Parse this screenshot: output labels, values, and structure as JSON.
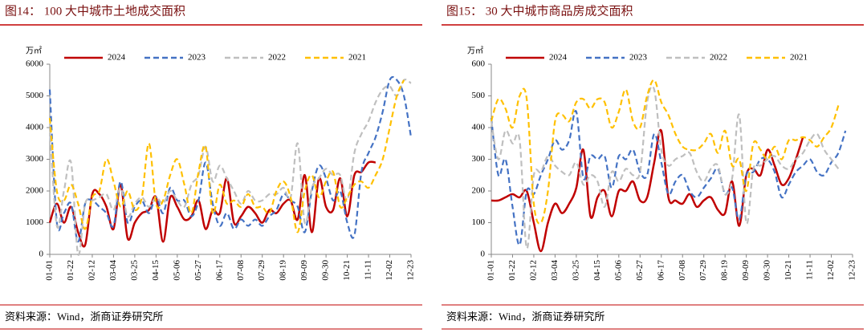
{
  "chart_data": [
    {
      "type": "line",
      "title": "图14：  100 大中城市土地成交面积",
      "y_unit": "万㎡",
      "source": "资料来源：Wind，浙商证券研究所",
      "categories": [
        "01-01",
        null,
        null,
        "01-22",
        null,
        null,
        "02-12",
        null,
        null,
        "03-04",
        null,
        null,
        "03-25",
        null,
        null,
        "04-15",
        null,
        null,
        "05-06",
        null,
        null,
        "05-27",
        null,
        null,
        "06-17",
        null,
        null,
        "07-08",
        null,
        null,
        "07-29",
        null,
        null,
        "08-19",
        null,
        null,
        "09-09",
        null,
        null,
        "09-30",
        null,
        null,
        "10-21",
        null,
        null,
        "11-11",
        null,
        null,
        "12-02",
        null,
        null,
        "12-23"
      ],
      "ylim": [
        0,
        6000
      ],
      "yticks": [
        0,
        1000,
        2000,
        3000,
        4000,
        5000,
        6000
      ],
      "grid": false,
      "smooth": true,
      "series": [
        {
          "name": "2024",
          "color": "#c00000",
          "line_style": "solid",
          "values": [
            1000,
            1600,
            1000,
            1500,
            700,
            300,
            1900,
            1900,
            1500,
            800,
            2200,
            500,
            1000,
            1300,
            1400,
            1800,
            400,
            1800,
            1500,
            1100,
            1200,
            1700,
            800,
            1400,
            1300,
            2400,
            1000,
            1200,
            1500,
            1300,
            1000,
            1400,
            1300,
            1600,
            1700,
            1100,
            2500,
            700,
            2400,
            1500,
            1400,
            2400,
            1200,
            2500,
            2600,
            2900,
            2900,
            null,
            null,
            null,
            null,
            null
          ]
        },
        {
          "name": "2023",
          "color": "#4472c4",
          "line_style": "dashed",
          "values": [
            5200,
            1000,
            1300,
            1600,
            400,
            1600,
            1700,
            1500,
            1300,
            900,
            2300,
            1000,
            1500,
            1700,
            1300,
            1800,
            1300,
            2100,
            1700,
            1700,
            1200,
            1700,
            2900,
            1600,
            900,
            1300,
            800,
            1100,
            900,
            1100,
            900,
            1200,
            1400,
            1900,
            1700,
            1500,
            700,
            2000,
            2800,
            2400,
            1700,
            2000,
            1000,
            600,
            2600,
            3200,
            3700,
            4500,
            5500,
            5500,
            5000,
            3700
          ]
        },
        {
          "name": "2022",
          "color": "#bfbfbf",
          "line_style": "dashed",
          "values": [
            4000,
            900,
            2000,
            2900,
            0,
            1600,
            1700,
            1800,
            1900,
            1400,
            2100,
            1200,
            1600,
            1800,
            1500,
            1800,
            1600,
            2000,
            1700,
            1500,
            2200,
            2500,
            3400,
            2300,
            2800,
            2400,
            2000,
            1600,
            2000,
            1700,
            1700,
            1900,
            1900,
            2100,
            1800,
            3500,
            1000,
            2100,
            2400,
            2700,
            2500,
            2500,
            1700,
            3200,
            3800,
            4200,
            4800,
            5200,
            5300,
            5000,
            5500,
            5400
          ]
        },
        {
          "name": "2021",
          "color": "#ffc000",
          "line_style": "dashed",
          "values": [
            4300,
            2000,
            1700,
            2200,
            1600,
            800,
            1800,
            2000,
            3000,
            2300,
            1500,
            2000,
            1400,
            1800,
            3500,
            1600,
            1700,
            2500,
            3000,
            2200,
            1300,
            2600,
            3400,
            1300,
            2200,
            1600,
            1700,
            1500,
            1900,
            1500,
            1500,
            1300,
            2000,
            2300,
            1800,
            700,
            2000,
            2500,
            1800,
            2300,
            2600,
            1500,
            1800,
            2200,
            2300,
            2100,
            2500,
            3000,
            4000,
            5000,
            5500,
            null
          ]
        }
      ]
    },
    {
      "type": "line",
      "title": "图15：  30 大中城市商品房成交面积",
      "y_unit": "万㎡",
      "source": "资料来源：Wind，浙商证券研究所",
      "categories": [
        "01-01",
        null,
        null,
        "01-22",
        null,
        null,
        "02-12",
        null,
        null,
        "03-04",
        null,
        null,
        "03-25",
        null,
        null,
        "04-15",
        null,
        null,
        "05-06",
        null,
        null,
        "05-27",
        null,
        null,
        "06-17",
        null,
        null,
        "07-08",
        null,
        null,
        "07-29",
        null,
        null,
        "08-19",
        null,
        null,
        "09-09",
        null,
        null,
        "09-30",
        null,
        null,
        "10-21",
        null,
        null,
        "11-11",
        null,
        null,
        "12-02",
        null,
        null,
        "12-23"
      ],
      "ylim": [
        0,
        600
      ],
      "yticks": [
        0,
        100,
        200,
        300,
        400,
        500,
        600
      ],
      "grid": false,
      "smooth": true,
      "series": [
        {
          "name": "2024",
          "color": "#c00000",
          "line_style": "solid",
          "values": [
            170,
            170,
            180,
            190,
            180,
            200,
            100,
            10,
            100,
            160,
            130,
            160,
            210,
            330,
            120,
            180,
            200,
            120,
            200,
            200,
            230,
            170,
            180,
            290,
            390,
            180,
            170,
            160,
            190,
            150,
            170,
            180,
            140,
            130,
            230,
            90,
            250,
            270,
            250,
            330,
            280,
            220,
            240,
            300,
            370,
            null,
            null,
            null,
            null,
            null,
            null,
            null
          ]
        },
        {
          "name": "2023",
          "color": "#4472c4",
          "line_style": "dashed",
          "values": [
            430,
            250,
            300,
            150,
            30,
            200,
            190,
            250,
            300,
            360,
            330,
            360,
            450,
            240,
            310,
            300,
            310,
            210,
            310,
            300,
            330,
            260,
            250,
            380,
            290,
            190,
            230,
            250,
            200,
            180,
            210,
            240,
            270,
            190,
            210,
            110,
            250,
            260,
            300,
            300,
            260,
            180,
            220,
            260,
            280,
            300,
            260,
            250,
            290,
            320,
            390,
            null
          ]
        },
        {
          "name": "2022",
          "color": "#bfbfbf",
          "line_style": "dashed",
          "values": [
            420,
            300,
            390,
            350,
            360,
            20,
            250,
            260,
            310,
            280,
            260,
            250,
            290,
            220,
            250,
            230,
            150,
            260,
            230,
            270,
            250,
            260,
            480,
            520,
            330,
            280,
            300,
            310,
            320,
            260,
            230,
            270,
            280,
            190,
            240,
            440,
            100,
            270,
            280,
            300,
            310,
            280,
            270,
            300,
            320,
            360,
            380,
            330,
            300,
            270,
            null,
            null
          ]
        },
        {
          "name": "2021",
          "color": "#ffc000",
          "line_style": "dashed",
          "values": [
            420,
            490,
            460,
            400,
            500,
            490,
            160,
            100,
            200,
            420,
            440,
            420,
            480,
            490,
            460,
            490,
            480,
            400,
            450,
            520,
            420,
            400,
            500,
            550,
            480,
            440,
            380,
            340,
            330,
            330,
            350,
            380,
            320,
            390,
            280,
            300,
            200,
            350,
            330,
            300,
            340,
            300,
            360,
            360,
            370,
            360,
            340,
            370,
            400,
            470,
            null,
            null
          ]
        }
      ]
    }
  ]
}
